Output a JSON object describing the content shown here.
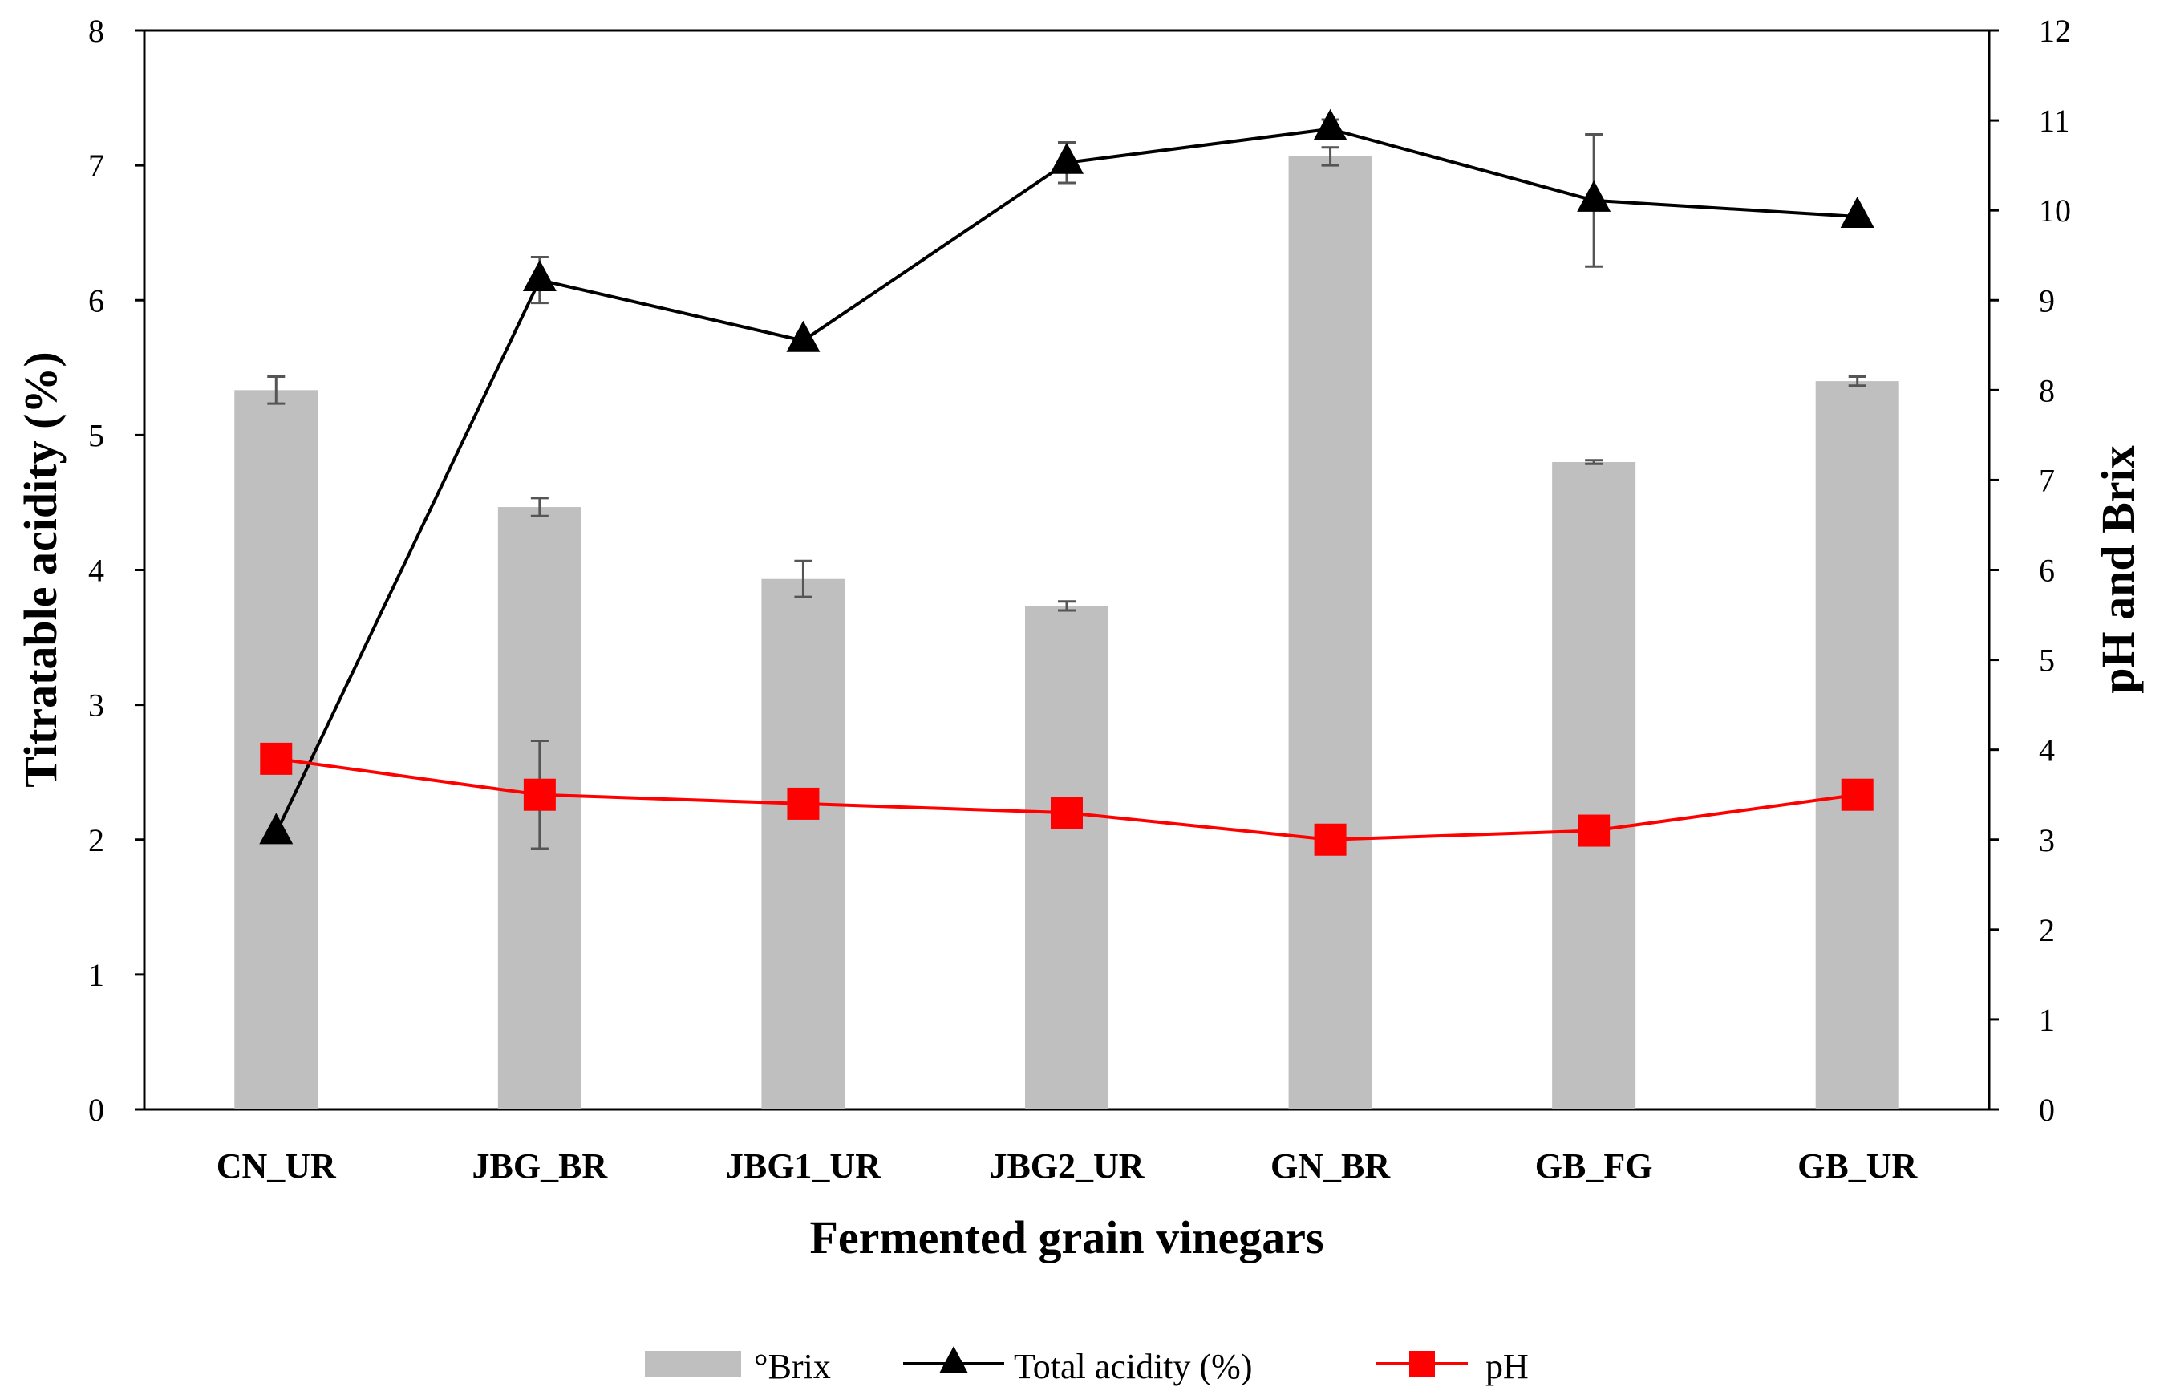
{
  "chart_data": {
    "type": "bar",
    "title": "",
    "xlabel": "Fermented grain vinegars",
    "ylabel": "Titratable acidity (%)",
    "y2label": "pH and Brix",
    "ylim": [
      0,
      8
    ],
    "y2lim": [
      0,
      12
    ],
    "yticks": [
      "0",
      "1",
      "2",
      "3",
      "4",
      "5",
      "6",
      "7",
      "8"
    ],
    "y2ticks": [
      "0",
      "1",
      "2",
      "3",
      "4",
      "5",
      "6",
      "7",
      "8",
      "9",
      "10",
      "11",
      "12"
    ],
    "categories": [
      "CN_UR",
      "JBG_BR",
      "JBG1_UR",
      "JBG2_UR",
      "GN_BR",
      "GB_FG",
      "GB_UR"
    ],
    "legend_position": "bottom",
    "series": [
      {
        "name": "°Brix",
        "kind": "bar",
        "axis": "right",
        "color": "#bfbfbf",
        "values": [
          8.0,
          6.7,
          5.9,
          5.6,
          10.6,
          7.2,
          8.1
        ],
        "errors": [
          0.15,
          0.1,
          0.2,
          0.05,
          0.1,
          0.02,
          0.05
        ]
      },
      {
        "name": "Total acidity (%)",
        "kind": "line",
        "axis": "left",
        "color": "#000000",
        "marker": "triangle",
        "values": [
          2.05,
          6.15,
          5.7,
          7.02,
          7.27,
          6.74,
          6.62
        ],
        "errors": [
          0.0,
          0.17,
          0.0,
          0.15,
          0.07,
          0.49,
          0.0
        ]
      },
      {
        "name": "pH",
        "kind": "line",
        "axis": "right",
        "color": "#ff0000",
        "marker": "square",
        "values": [
          3.9,
          3.5,
          3.4,
          3.3,
          3.0,
          3.1,
          3.5
        ],
        "errors": [
          0.0,
          0.6,
          0.0,
          0.0,
          0.0,
          0.0,
          0.0
        ]
      }
    ]
  }
}
